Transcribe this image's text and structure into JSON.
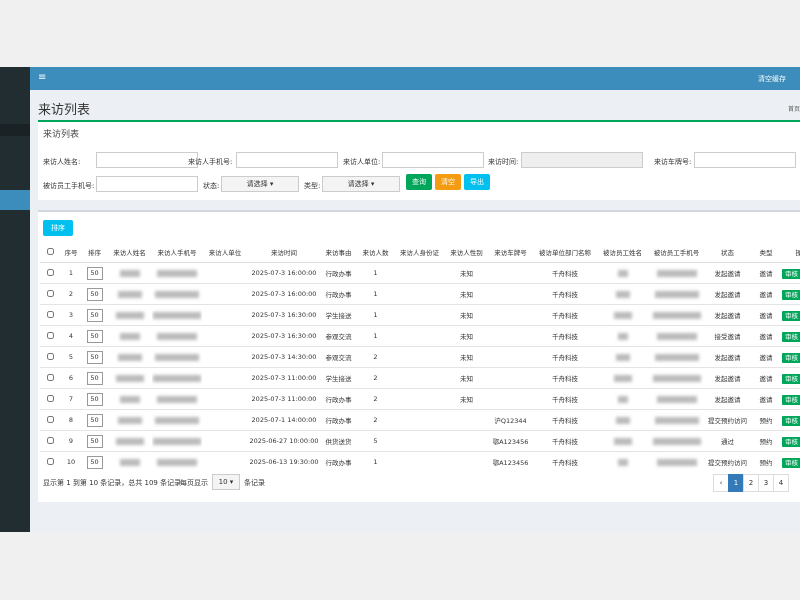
{
  "topbar": {
    "menu": "≡",
    "clear_cache": "清空缓存"
  },
  "page": {
    "title": "来访列表",
    "breadcrumb": "首页"
  },
  "filter": {
    "title": "来访列表",
    "labels": [
      "来访人姓名:",
      "来访人手机号:",
      "来访人单位:",
      "来访时间:",
      "来访车牌号:",
      "被访员工手机号:",
      "状态:",
      "类型:"
    ],
    "select_placeholder": "请选择",
    "buttons": [
      "查询",
      "清空",
      "导出"
    ]
  },
  "toolbar": {
    "sort_button": "排序"
  },
  "table": {
    "headers": [
      "序号",
      "排序",
      "来访人姓名",
      "来访人手机号",
      "来访人单位",
      "来访时间",
      "来访事由",
      "来访人数",
      "来访人身份证",
      "来访人性别",
      "来访车牌号",
      "被访单位部门名称",
      "被访员工姓名",
      "被访员工手机号",
      "状态",
      "类型",
      "操作"
    ],
    "action": "审核",
    "rows": [
      {
        "seq": "1",
        "sort": "50",
        "time": "2025-07-3 16:00:00",
        "reason": "行政办事",
        "count": "1",
        "gender": "未知",
        "dept": "千舟科技",
        "status": "发起邀请",
        "type": "邀请"
      },
      {
        "seq": "2",
        "sort": "50",
        "time": "2025-07-3 16:00:00",
        "reason": "行政办事",
        "count": "1",
        "gender": "未知",
        "dept": "千舟科技",
        "status": "发起邀请",
        "type": "邀请"
      },
      {
        "seq": "3",
        "sort": "50",
        "time": "2025-07-3 16:30:00",
        "reason": "学生接送",
        "count": "1",
        "gender": "未知",
        "dept": "千舟科技",
        "status": "发起邀请",
        "type": "邀请"
      },
      {
        "seq": "4",
        "sort": "50",
        "time": "2025-07-3 16:30:00",
        "reason": "参观交流",
        "count": "1",
        "gender": "未知",
        "dept": "千舟科技",
        "status": "接受邀请",
        "type": "邀请"
      },
      {
        "seq": "5",
        "sort": "50",
        "time": "2025-07-3 14:30:00",
        "reason": "参观交流",
        "count": "2",
        "gender": "未知",
        "dept": "千舟科技",
        "status": "发起邀请",
        "type": "邀请"
      },
      {
        "seq": "6",
        "sort": "50",
        "time": "2025-07-3 11:00:00",
        "reason": "学生接送",
        "count": "2",
        "gender": "未知",
        "dept": "千舟科技",
        "status": "发起邀请",
        "type": "邀请"
      },
      {
        "seq": "7",
        "sort": "50",
        "time": "2025-07-3 11:00:00",
        "reason": "行政办事",
        "count": "2",
        "gender": "未知",
        "dept": "千舟科技",
        "status": "发起邀请",
        "type": "邀请"
      },
      {
        "seq": "8",
        "sort": "50",
        "time": "2025-07-1 14:00:00",
        "reason": "行政办事",
        "count": "2",
        "plate": "沪Q12344",
        "dept": "千舟科技",
        "status": "提交预约访问",
        "type": "预约"
      },
      {
        "seq": "9",
        "sort": "50",
        "time": "2025-06-27 10:00:00",
        "reason": "供货送货",
        "count": "5",
        "plate": "鄂A123456",
        "dept": "千舟科技",
        "status": "通过",
        "type": "预约"
      },
      {
        "seq": "10",
        "sort": "50",
        "time": "2025-06-13 19:30:00",
        "reason": "行政办事",
        "count": "1",
        "plate": "鄂A123456",
        "dept": "千舟科技",
        "status": "提交预约访问",
        "type": "预约"
      }
    ]
  },
  "footer": {
    "summary": "显示第 1 到第 10 条记录，总共 109 条记录",
    "per_page": "每页显示",
    "page_size": "10",
    "records": "条记录",
    "pages": [
      "‹",
      "1",
      "2",
      "3",
      "4"
    ]
  }
}
